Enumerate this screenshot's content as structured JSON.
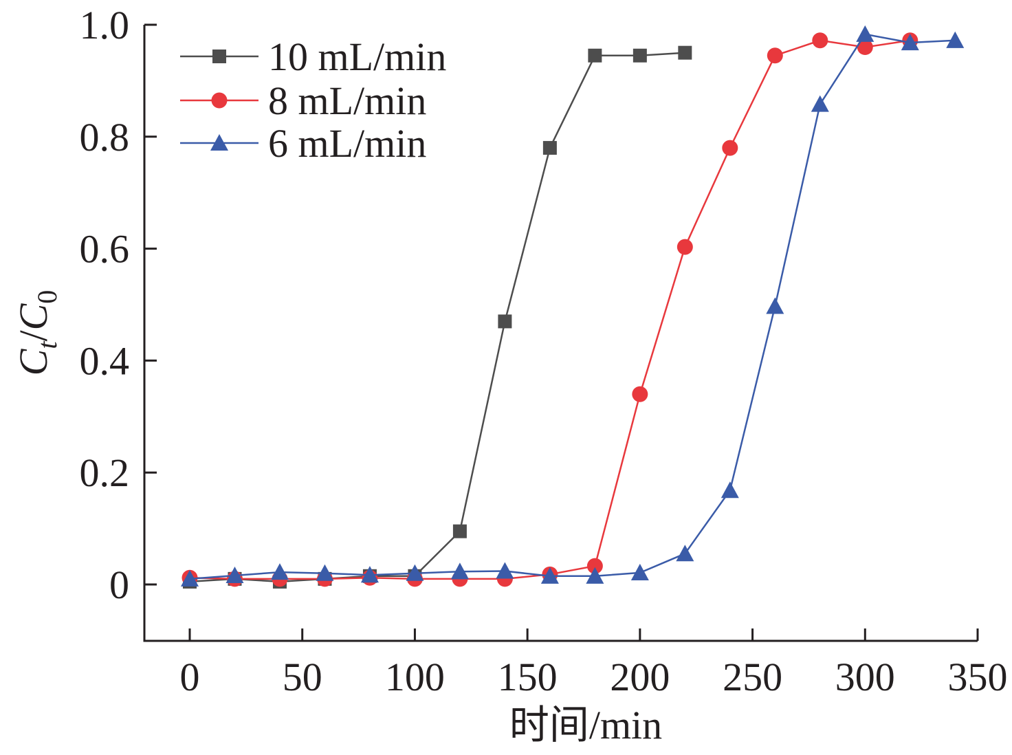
{
  "chart_data": {
    "type": "line",
    "title": "",
    "xlabel": "时间/min",
    "ylabel": {
      "main": "C",
      "sub1": "t",
      "slash": "/",
      "main2": "C",
      "sub2": "0"
    },
    "xlim": [
      -20,
      350
    ],
    "ylim": [
      -0.1,
      1.0
    ],
    "xticks": [
      0,
      50,
      100,
      150,
      200,
      250,
      300,
      350
    ],
    "yticks": [
      0,
      0.2,
      0.4,
      0.6,
      0.8,
      1.0
    ],
    "xtick_labels": [
      "0",
      "50",
      "100",
      "150",
      "200",
      "250",
      "300",
      "350"
    ],
    "ytick_labels": [
      "0",
      "0.2",
      "0.4",
      "0.6",
      "0.8",
      "1.0"
    ],
    "grid": false,
    "legend_position": "top-left",
    "series": [
      {
        "name": "10 mL/min",
        "color": "#4d4d4d",
        "marker": "square",
        "x": [
          0,
          20,
          40,
          60,
          80,
          100,
          120,
          140,
          160,
          180,
          200,
          220
        ],
        "y": [
          0.005,
          0.01,
          0.005,
          0.01,
          0.015,
          0.015,
          0.095,
          0.47,
          0.78,
          0.945,
          0.945,
          0.95
        ]
      },
      {
        "name": "8 mL/min",
        "color": "#e8383d",
        "marker": "circle",
        "x": [
          0,
          20,
          40,
          60,
          80,
          100,
          120,
          140,
          160,
          180,
          200,
          220,
          240,
          260,
          280,
          300,
          320
        ],
        "y": [
          0.012,
          0.01,
          0.01,
          0.01,
          0.012,
          0.01,
          0.01,
          0.01,
          0.018,
          0.033,
          0.34,
          0.603,
          0.78,
          0.945,
          0.972,
          0.96,
          0.972
        ]
      },
      {
        "name": "6 mL/min",
        "color": "#3a5ba8",
        "marker": "triangle",
        "x": [
          0,
          20,
          40,
          60,
          80,
          100,
          120,
          140,
          160,
          180,
          200,
          220,
          240,
          260,
          280,
          300,
          320,
          340
        ],
        "y": [
          0.01,
          0.016,
          0.022,
          0.02,
          0.017,
          0.02,
          0.023,
          0.024,
          0.015,
          0.015,
          0.021,
          0.055,
          0.168,
          0.497,
          0.858,
          0.983,
          0.968,
          0.972
        ]
      }
    ]
  }
}
